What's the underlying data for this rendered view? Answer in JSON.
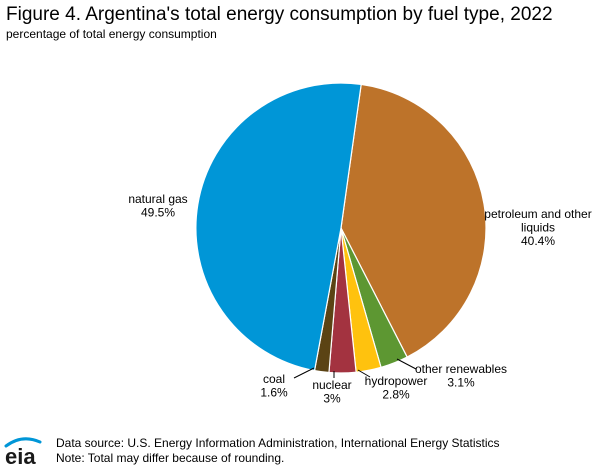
{
  "header": {
    "title": "Figure 4. Argentina's total energy consumption by fuel type, 2022",
    "subtitle": "percentage of total energy consumption"
  },
  "chart_data": {
    "type": "pie",
    "title": "Figure 4. Argentina's total energy consumption by fuel type, 2022",
    "subtitle": "percentage of total energy consumption",
    "start_angle_deg": 8,
    "direction": "clockwise",
    "slices": [
      {
        "label": [
          "petroleum and other",
          "liquids"
        ],
        "value": 40.4,
        "value_text": "40.4%",
        "color": "#bd732a"
      },
      {
        "label": [
          "other renewables"
        ],
        "value": 3.1,
        "value_text": "3.1%",
        "color": "#5d9732"
      },
      {
        "label": [
          "hydropower"
        ],
        "value": 2.8,
        "value_text": "2.8%",
        "color": "#ffc20e"
      },
      {
        "label": [
          "nuclear"
        ],
        "value": 3.0,
        "value_text": "3%",
        "color": "#a33340"
      },
      {
        "label": [
          "coal"
        ],
        "value": 1.6,
        "value_text": "1.6%",
        "color": "#5b4314"
      },
      {
        "label": [
          "natural gas"
        ],
        "value": 49.5,
        "value_text": "49.5%",
        "color": "#0096d7"
      }
    ]
  },
  "footer": {
    "source": "Data source: U.S. Energy Information Administration, International Energy Statistics",
    "note": "Note: Total may differ because of rounding.",
    "logo_text": "eia"
  }
}
